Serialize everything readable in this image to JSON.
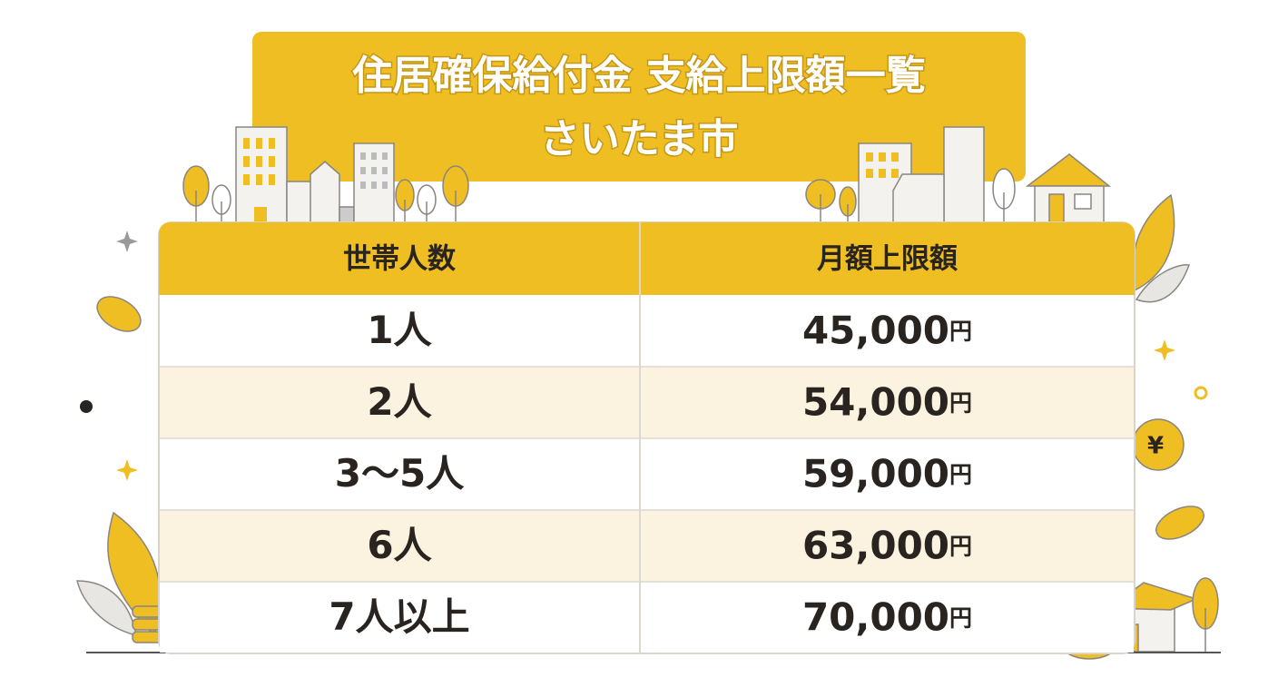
{
  "header": {
    "title": "住居確保給付金 支給上限額一覧",
    "subtitle": "さいたま市"
  },
  "table": {
    "columns": [
      "世帯人数",
      "月額上限額"
    ],
    "rows": [
      {
        "household": "1人",
        "amount": "45,000",
        "unit": "円"
      },
      {
        "household": "2人",
        "amount": "54,000",
        "unit": "円"
      },
      {
        "household": "3〜5人",
        "amount": "59,000",
        "unit": "円"
      },
      {
        "household": "6人",
        "amount": "63,000",
        "unit": "円"
      },
      {
        "household": "7人以上",
        "amount": "70,000",
        "unit": "円"
      }
    ]
  }
}
